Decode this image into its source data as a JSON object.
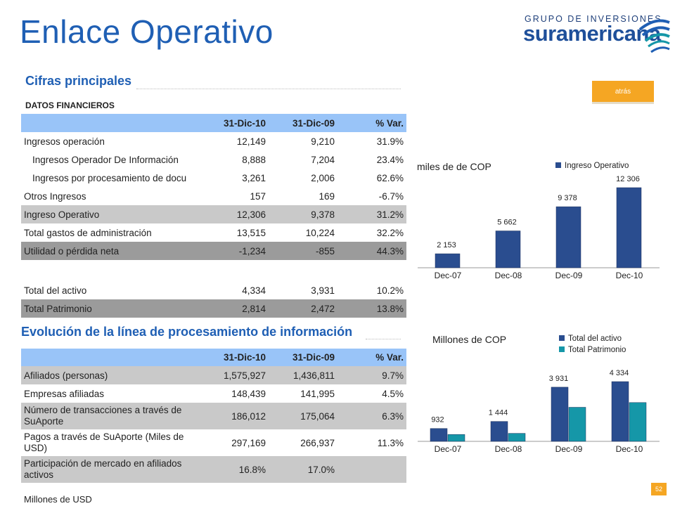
{
  "header": {
    "title": "Enlace Operativo",
    "logo_top": "GRUPO DE INVERSIONES",
    "logo_bottom": "suramericana",
    "back_button": "atrás"
  },
  "section1": {
    "title": "Cifras principales",
    "subtitle": "DATOS FINANCIEROS",
    "columns": [
      "",
      "31-Dic-10",
      "31-Dic-09",
      "% Var."
    ],
    "rows": [
      {
        "label": "Ingresos operación",
        "c1": "12,149",
        "c2": "9,210",
        "c3": "31.9%"
      },
      {
        "label": "Ingresos Operador De Información",
        "c1": "8,888",
        "c2": "7,204",
        "c3": "23.4%"
      },
      {
        "label": "Ingresos por procesamiento de docu",
        "c1": "3,261",
        "c2": "2,006",
        "c3": "62.6%"
      },
      {
        "label": "Otros Ingresos",
        "c1": "157",
        "c2": "169",
        "c3": "-6.7%"
      },
      {
        "label": "Ingreso Operativo",
        "c1": "12,306",
        "c2": "9,378",
        "c3": "31.2%"
      },
      {
        "label": "Total gastos de administración",
        "c1": "13,515",
        "c2": "10,224",
        "c3": "32.2%"
      },
      {
        "label": "Utilidad o pérdida neta",
        "c1": "-1,234",
        "c2": "-855",
        "c3": "44.3%"
      },
      {
        "label": "Total del activo",
        "c1": "4,334",
        "c2": "3,931",
        "c3": "10.2%"
      },
      {
        "label": "Total Patrimonio",
        "c1": "2,814",
        "c2": "2,472",
        "c3": "13.8%"
      }
    ]
  },
  "section2": {
    "title": "Evolución de la línea de procesamiento de información",
    "columns": [
      "",
      "31-Dic-10",
      "31-Dic-09",
      "% Var."
    ],
    "rows": [
      {
        "label": "Afiliados (personas)",
        "c1": "1,575,927",
        "c2": "1,436,811",
        "c3": "9.7%"
      },
      {
        "label": "Empresas afiliadas",
        "c1": "148,439",
        "c2": "141,995",
        "c3": "4.5%"
      },
      {
        "label": "Número de transacciones a través de SuAporte",
        "c1": "186,012",
        "c2": "175,064",
        "c3": "6.3%"
      },
      {
        "label": "Pagos a través de SuAporte (Miles de USD)",
        "c1": "297,169",
        "c2": "266,937",
        "c3": "11.3%"
      },
      {
        "label": "Participación de mercado en afiliados activos",
        "c1": "16.8%",
        "c2": "17.0%",
        "c3": ""
      }
    ]
  },
  "footer": {
    "note": "Millones de USD",
    "page": "52"
  },
  "chart_data": [
    {
      "type": "bar",
      "ylabel": "miles de de COP",
      "categories": [
        "Dec-07",
        "Dec-08",
        "Dec-09",
        "Dec-10"
      ],
      "series": [
        {
          "name": "Ingreso Operativo",
          "values": [
            2153,
            5662,
            9378,
            12306
          ],
          "labels": [
            "2 153",
            "5 662",
            "9 378",
            "12 306"
          ],
          "color": "#2a4d8f"
        }
      ],
      "ylim": [
        0,
        12306
      ],
      "legend": "top-right",
      "grid": false
    },
    {
      "type": "bar",
      "ylabel": "Millones de COP",
      "categories": [
        "Dec-07",
        "Dec-08",
        "Dec-09",
        "Dec-10"
      ],
      "series": [
        {
          "name": "Total del activo",
          "values": [
            932,
            1444,
            3931,
            4334
          ],
          "labels": [
            "932",
            "1 444",
            "3 931",
            "4 334"
          ],
          "color": "#2a4d8f"
        },
        {
          "name": "Total Patrimonio",
          "values": [
            500,
            580,
            2472,
            2814
          ],
          "labels": [],
          "color": "#1597a8"
        }
      ],
      "ylim": [
        0,
        4334
      ],
      "legend": "top-right",
      "grid": false
    }
  ]
}
